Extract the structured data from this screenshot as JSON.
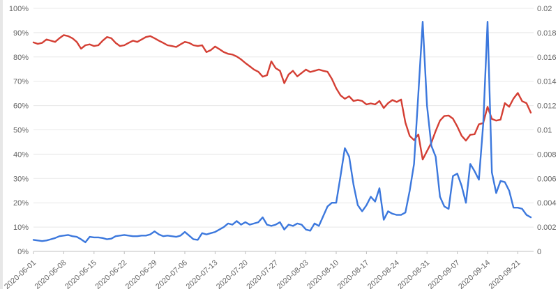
{
  "chart_data": {
    "type": "line",
    "title": "",
    "legend": "none",
    "grid": "horizontal",
    "background_color": "#ffffff",
    "gridline_color": "#e8e8e8",
    "axis_line_color": "#c2c2c2",
    "tick_text_color": "#636363",
    "left_axis": {
      "min": 0,
      "max": 100,
      "format": "percent",
      "ticks": [
        "100%",
        "90%",
        "80%",
        "70%",
        "60%",
        "50%",
        "40%",
        "30%",
        "20%",
        "10%",
        "0%"
      ]
    },
    "right_axis": {
      "min": 0,
      "max": 0.02,
      "ticks": [
        "0.02",
        "0.018",
        "0.016",
        "0.014",
        "0.012",
        "0.01",
        "0.008",
        "0.006",
        "0.004",
        "0.002",
        "0"
      ]
    },
    "x_axis": {
      "start_date": "2020-06-01",
      "step_days": 1,
      "count": 116,
      "tick_interval_days": 7,
      "tick_labels": [
        "2020-06-01",
        "2020-06-08",
        "2020-06-15",
        "2020-06-22",
        "2020-06-29",
        "2020-07-06",
        "2020-07-13",
        "2020-07-20",
        "2020-07-27",
        "2020-08-03",
        "2020-08-10",
        "2020-08-17",
        "2020-08-24",
        "2020-08-31",
        "2020-09-07",
        "2020-09-14",
        "2020-09-21"
      ]
    },
    "series": [
      {
        "id": "red-series",
        "color": "#d43f34",
        "axis": "left",
        "values": [
          86,
          85.4,
          85.8,
          87.2,
          86.7,
          86.2,
          87.7,
          89,
          88.6,
          87.7,
          86.2,
          83.4,
          84.8,
          85.2,
          84.5,
          84.8,
          86.7,
          88.2,
          87.7,
          85.8,
          84.5,
          84.8,
          85.8,
          86.7,
          86.2,
          87.2,
          88.2,
          88.6,
          87.7,
          86.7,
          85.8,
          84.8,
          84.5,
          84.1,
          85.2,
          86.2,
          85.8,
          84.8,
          84.5,
          84.8,
          82,
          82.8,
          84.3,
          83.2,
          82,
          81.3,
          81,
          80.2,
          79,
          77.5,
          76.2,
          74.8,
          73.9,
          71.9,
          72.5,
          78.2,
          75.4,
          74.3,
          69.2,
          72.8,
          74.3,
          72,
          73.4,
          74.8,
          73.8,
          74.3,
          74.8,
          74.3,
          73.9,
          71,
          67.1,
          64.2,
          62.8,
          63.8,
          61.9,
          62.3,
          61.9,
          60.5,
          60.9,
          60.5,
          61.9,
          59,
          61,
          62.3,
          61.5,
          62.5,
          53,
          47.5,
          45.8,
          48.1,
          37.8,
          41.3,
          44.7,
          49.5,
          53.8,
          55.7,
          55.9,
          54.6,
          51.4,
          47.6,
          45.6,
          48,
          48.2,
          52.3,
          52.8,
          59.5,
          54.5,
          53.8,
          54.2,
          61,
          59.5,
          62.9,
          65.2,
          61.8,
          61,
          57.1
        ]
      },
      {
        "id": "blue-series",
        "color": "#3c78dd",
        "axis": "right",
        "values": [
          0.00095,
          0.0009,
          0.00085,
          0.0009,
          0.001,
          0.0011,
          0.00125,
          0.0013,
          0.00135,
          0.00125,
          0.0012,
          0.001,
          0.00075,
          0.0012,
          0.00115,
          0.00115,
          0.0011,
          0.001,
          0.00105,
          0.00125,
          0.0013,
          0.00135,
          0.0013,
          0.00125,
          0.00125,
          0.0013,
          0.0013,
          0.0014,
          0.00165,
          0.0014,
          0.00125,
          0.0013,
          0.00125,
          0.0012,
          0.0013,
          0.0016,
          0.0013,
          0.001,
          0.00095,
          0.0015,
          0.0014,
          0.0015,
          0.0016,
          0.0018,
          0.002,
          0.0023,
          0.0022,
          0.0025,
          0.0022,
          0.0024,
          0.0022,
          0.0023,
          0.0024,
          0.0028,
          0.0022,
          0.0021,
          0.0022,
          0.0024,
          0.0018,
          0.0022,
          0.0021,
          0.0023,
          0.0022,
          0.0018,
          0.0017,
          0.0023,
          0.0021,
          0.0029,
          0.0037,
          0.004,
          0.004,
          0.0062,
          0.0085,
          0.0078,
          0.0055,
          0.0038,
          0.0033,
          0.0038,
          0.0045,
          0.0041,
          0.0052,
          0.0026,
          0.0033,
          0.0031,
          0.003,
          0.003,
          0.0032,
          0.005,
          0.0072,
          0.013,
          0.0189,
          0.012,
          0.0087,
          0.0078,
          0.0045,
          0.0037,
          0.0035,
          0.0062,
          0.0064,
          0.0054,
          0.004,
          0.0072,
          0.0066,
          0.0059,
          0.0105,
          0.0189,
          0.0065,
          0.0048,
          0.0058,
          0.0057,
          0.005,
          0.0036,
          0.0036,
          0.0035,
          0.003,
          0.0028
        ]
      }
    ]
  }
}
